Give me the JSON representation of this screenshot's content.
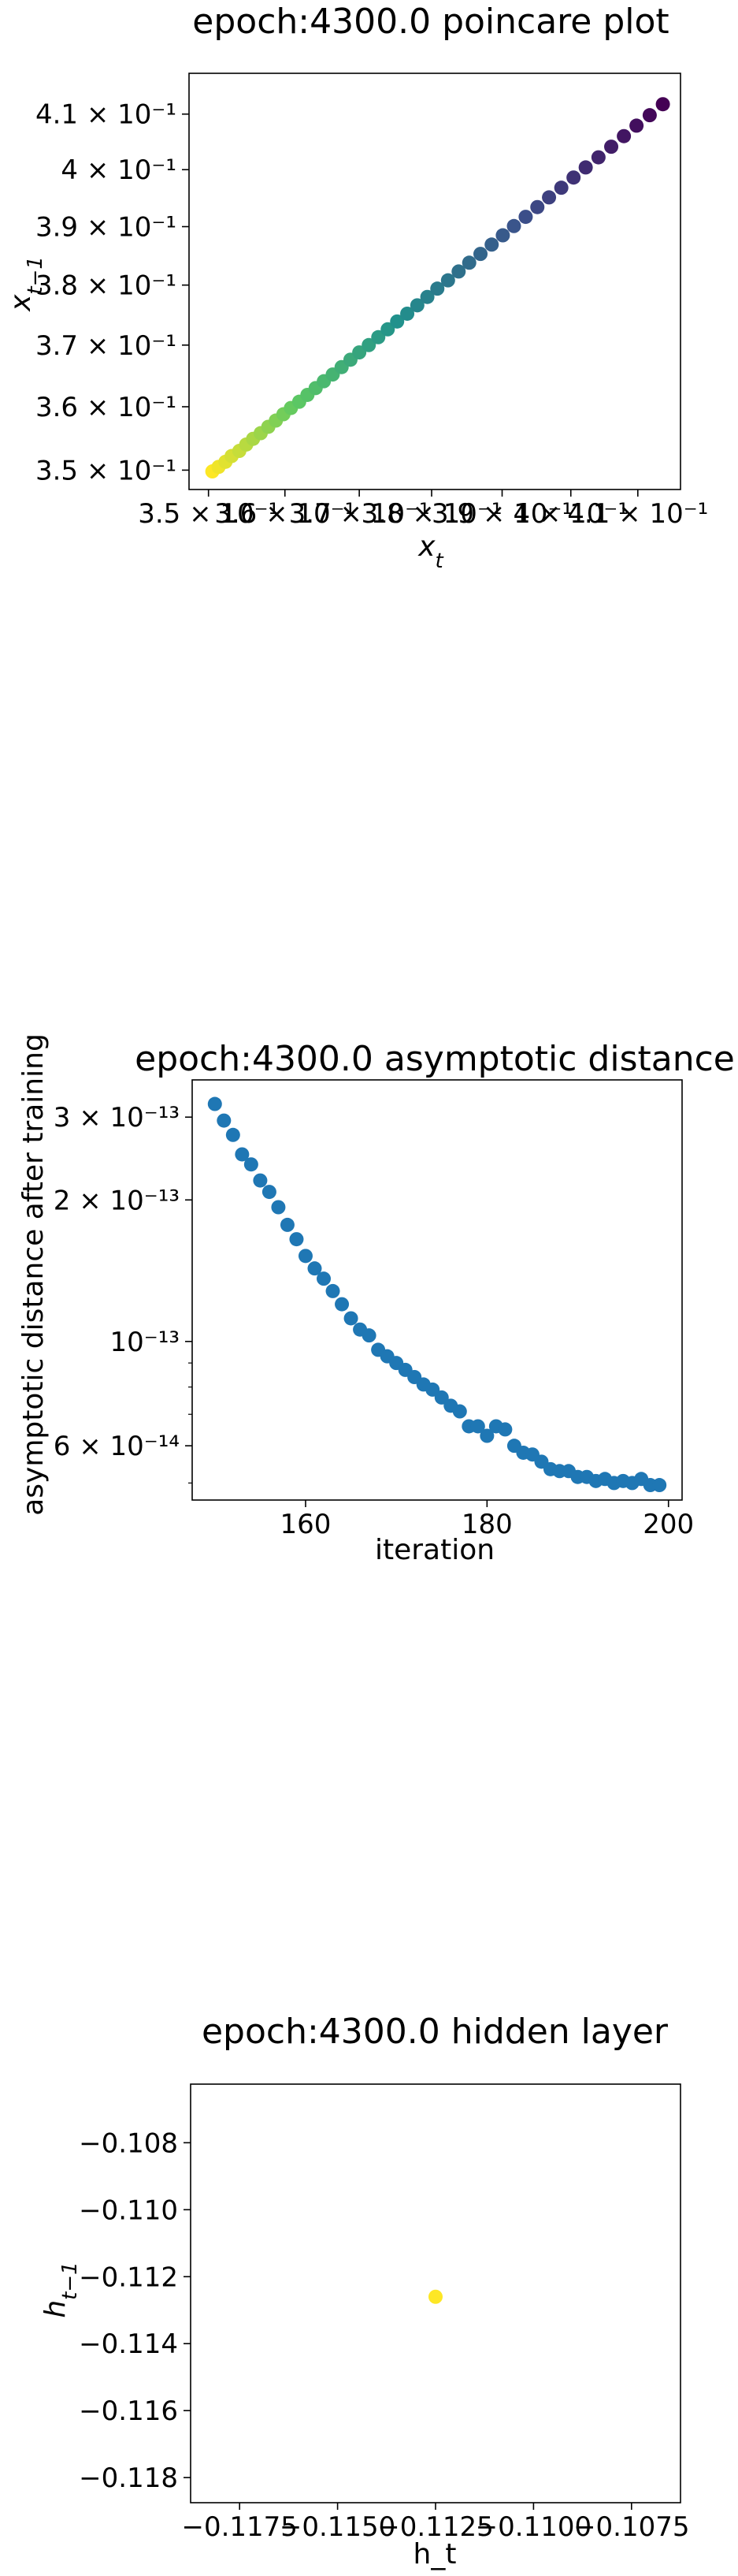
{
  "chart_data": [
    {
      "type": "scatter",
      "title": "epoch:4300.0 poincare plot",
      "xlabel": "x_t",
      "ylabel": "x_{t-1}",
      "log_x": true,
      "log_y": true,
      "xlim": [
        0.3475,
        0.4165
      ],
      "ylim": [
        0.347,
        0.4175
      ],
      "xticks": [
        {
          "value": 0.35,
          "label": "3.5 × 10⁻¹"
        },
        {
          "value": 0.36,
          "label": "3.6 × 10⁻¹"
        },
        {
          "value": 0.37,
          "label": "3.7 × 10⁻¹"
        },
        {
          "value": 0.38,
          "label": "3.8 × 10⁻¹"
        },
        {
          "value": 0.39,
          "label": "3.9 × 10⁻¹"
        },
        {
          "value": 0.4,
          "label": "4 × 10⁻¹"
        },
        {
          "value": 0.41,
          "label": "4.1 × 10⁻¹"
        }
      ],
      "yticks": [
        {
          "value": 0.35,
          "label": "3.5 × 10⁻¹"
        },
        {
          "value": 0.36,
          "label": "3.6 × 10⁻¹"
        },
        {
          "value": 0.37,
          "label": "3.7 × 10⁻¹"
        },
        {
          "value": 0.38,
          "label": "3.8 × 10⁻¹"
        },
        {
          "value": 0.39,
          "label": "3.9 × 10⁻¹"
        },
        {
          "value": 0.4,
          "label": "4 × 10⁻¹"
        },
        {
          "value": 0.41,
          "label": "4.1 × 10⁻¹"
        }
      ],
      "colormap": [
        "#440154",
        "#3b528b",
        "#21918c",
        "#5ec962",
        "#fde725"
      ],
      "points": {
        "x": [
          0.3505,
          0.3513,
          0.3522,
          0.353,
          0.354,
          0.3549,
          0.3558,
          0.3568,
          0.3578,
          0.3588,
          0.3598,
          0.3608,
          0.3619,
          0.363,
          0.3641,
          0.3652,
          0.3664,
          0.3676,
          0.3688,
          0.37,
          0.3713,
          0.3726,
          0.3739,
          0.3752,
          0.3766,
          0.378,
          0.3794,
          0.3808,
          0.3823,
          0.3838,
          0.3853,
          0.3869,
          0.3885,
          0.3901,
          0.3917,
          0.3934,
          0.3951,
          0.3968,
          0.3986,
          0.4004,
          0.4022,
          0.4041,
          0.406,
          0.4079,
          0.4098,
          0.4118,
          0.4138
        ],
        "y": [
          0.3498,
          0.3505,
          0.3513,
          0.3522,
          0.353,
          0.354,
          0.3549,
          0.3558,
          0.3568,
          0.3578,
          0.3588,
          0.3598,
          0.3608,
          0.3619,
          0.363,
          0.3641,
          0.3652,
          0.3664,
          0.3676,
          0.3688,
          0.37,
          0.3713,
          0.3726,
          0.3739,
          0.3752,
          0.3766,
          0.378,
          0.3794,
          0.3808,
          0.3823,
          0.3838,
          0.3853,
          0.3869,
          0.3885,
          0.3901,
          0.3917,
          0.3934,
          0.3951,
          0.3968,
          0.3986,
          0.4004,
          0.4022,
          0.4041,
          0.406,
          0.4079,
          0.4098,
          0.4118
        ]
      }
    },
    {
      "type": "scatter",
      "title": "epoch:4300.0 asymptotic distance",
      "xlabel": "iteration",
      "ylabel": "asymptotic distance after training",
      "log_y": true,
      "xlim": [
        147.5,
        201.5
      ],
      "ylim": [
        4.6e-14,
        3.6e-13
      ],
      "xticks": [
        {
          "value": 160,
          "label": "160"
        },
        {
          "value": 180,
          "label": "180"
        },
        {
          "value": 200,
          "label": "200"
        }
      ],
      "yticks": [
        {
          "value": 6e-14,
          "label": "6 × 10⁻¹⁴"
        },
        {
          "value": 1e-13,
          "label": "10⁻¹³"
        },
        {
          "value": 2e-13,
          "label": "2 × 10⁻¹³"
        },
        {
          "value": 3e-13,
          "label": "3 × 10⁻¹³"
        }
      ],
      "color": "#1f77b4",
      "points": {
        "x": [
          150,
          151,
          152,
          153,
          154,
          155,
          156,
          157,
          158,
          159,
          160,
          161,
          162,
          163,
          164,
          165,
          166,
          167,
          168,
          169,
          170,
          171,
          172,
          173,
          174,
          175,
          176,
          177,
          178,
          179,
          180,
          181,
          182,
          183,
          184,
          185,
          186,
          187,
          188,
          189,
          190,
          191,
          192,
          193,
          194,
          195,
          196,
          197,
          198,
          199
        ],
        "y": [
          3.2e-13,
          2.95e-13,
          2.75e-13,
          2.5e-13,
          2.38e-13,
          2.2e-13,
          2.08e-13,
          1.93e-13,
          1.77e-13,
          1.65e-13,
          1.52e-13,
          1.43e-13,
          1.36e-13,
          1.28e-13,
          1.2e-13,
          1.12e-13,
          1.06e-13,
          1.03e-13,
          9.6e-14,
          9.3e-14,
          9e-14,
          8.7e-14,
          8.4e-14,
          8.1e-14,
          7.9e-14,
          7.6e-14,
          7.3e-14,
          7.1e-14,
          6.6e-14,
          6.6e-14,
          6.3e-14,
          6.6e-14,
          6.5e-14,
          6e-14,
          5.8e-14,
          5.75e-14,
          5.55e-14,
          5.35e-14,
          5.3e-14,
          5.3e-14,
          5.15e-14,
          5.15e-14,
          5.05e-14,
          5.1e-14,
          5e-14,
          5.05e-14,
          5e-14,
          5.1e-14,
          4.95e-14,
          4.95e-14
        ]
      }
    },
    {
      "type": "scatter",
      "title": "epoch:4300.0 hidden layer",
      "xlabel": "h_t",
      "ylabel": "h_{t-1}",
      "xlim": [
        -0.11875,
        -0.10625
      ],
      "ylim": [
        -0.11875,
        -0.10625
      ],
      "xticks": [
        {
          "value": -0.1175,
          "label": "−0.1175"
        },
        {
          "value": -0.115,
          "label": "−0.1150"
        },
        {
          "value": -0.1125,
          "label": "−0.1125"
        },
        {
          "value": -0.11,
          "label": "−0.1100"
        },
        {
          "value": -0.1075,
          "label": "−0.1075"
        }
      ],
      "yticks": [
        {
          "value": -0.108,
          "label": "−0.108"
        },
        {
          "value": -0.11,
          "label": "−0.110"
        },
        {
          "value": -0.112,
          "label": "−0.112"
        },
        {
          "value": -0.114,
          "label": "−0.114"
        },
        {
          "value": -0.116,
          "label": "−0.116"
        },
        {
          "value": -0.118,
          "label": "−0.118"
        }
      ],
      "color": "#fde725",
      "points": {
        "x": [
          -0.1125
        ],
        "y": [
          -0.1126
        ]
      }
    }
  ]
}
